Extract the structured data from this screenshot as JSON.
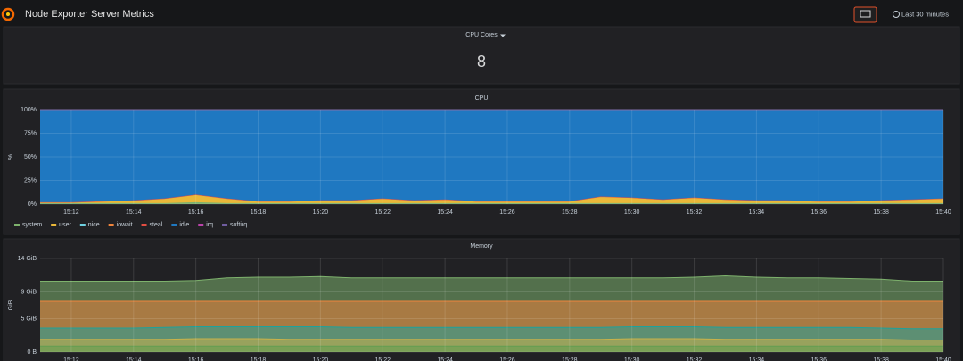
{
  "header": {
    "title": "Node Exporter Server Metrics",
    "time_range": "Last 30 minutes"
  },
  "stat": {
    "title": "CPU Cores",
    "value": 8
  },
  "chart_data": [
    {
      "type": "area",
      "stacked": true,
      "title": "CPU",
      "y_label": "%",
      "x": [
        "15:11",
        "15:12",
        "15:13",
        "15:14",
        "15:15",
        "15:16",
        "15:17",
        "15:18",
        "15:19",
        "15:20",
        "15:21",
        "15:22",
        "15:23",
        "15:24",
        "15:25",
        "15:26",
        "15:27",
        "15:28",
        "15:29",
        "15:30",
        "15:31",
        "15:32",
        "15:33",
        "15:34",
        "15:35",
        "15:36",
        "15:37",
        "15:38",
        "15:39",
        "15:40"
      ],
      "xticks": [
        "15:12",
        "15:14",
        "15:16",
        "15:18",
        "15:20",
        "15:22",
        "15:24",
        "15:26",
        "15:28",
        "15:30",
        "15:32",
        "15:34",
        "15:36",
        "15:38",
        "15:40"
      ],
      "ylim": [
        0,
        100
      ],
      "yticks": [
        {
          "value": 0,
          "label": "0%"
        },
        {
          "value": 25,
          "label": "25%"
        },
        {
          "value": 50,
          "label": "50%"
        },
        {
          "value": 75,
          "label": "75%"
        },
        {
          "value": 100,
          "label": "100%"
        }
      ],
      "grid": true,
      "series": [
        {
          "name": "system",
          "color": "#7eb26d",
          "values": [
            1,
            1,
            1,
            1,
            1,
            2,
            1,
            1,
            1,
            1,
            1,
            1,
            1,
            1,
            1,
            1,
            1,
            1,
            1,
            1,
            1,
            1,
            1,
            1,
            1,
            1,
            1,
            1,
            1,
            1
          ]
        },
        {
          "name": "user",
          "color": "#eab839",
          "values": [
            1,
            1,
            2,
            3,
            5,
            8,
            5,
            2,
            2,
            3,
            3,
            5,
            3,
            4,
            2,
            2,
            2,
            2,
            7,
            6,
            4,
            6,
            4,
            3,
            3,
            2,
            2,
            3,
            4,
            5
          ]
        },
        {
          "name": "nice",
          "color": "#6ed0e0",
          "values": [
            0,
            0,
            0,
            0,
            0,
            0,
            0,
            0,
            0,
            0,
            0,
            0,
            0,
            0,
            0,
            0,
            0,
            0,
            0,
            0,
            0,
            0,
            0,
            0,
            0,
            0,
            0,
            0,
            0,
            0
          ]
        },
        {
          "name": "iowait",
          "color": "#ef843c",
          "values": [
            0,
            0,
            0,
            0,
            0,
            0,
            0,
            0,
            0,
            0,
            0,
            0,
            0,
            0,
            0,
            0,
            0,
            0,
            0,
            0,
            0,
            0,
            0,
            0,
            0,
            0,
            0,
            0,
            0,
            0
          ]
        },
        {
          "name": "steal",
          "color": "#e24d42",
          "values": [
            0,
            0,
            0,
            0,
            0,
            0,
            0,
            0,
            0,
            0,
            0,
            0,
            0,
            0,
            0,
            0,
            0,
            0,
            0,
            0,
            0,
            0,
            0,
            0,
            0,
            0,
            0,
            0,
            0,
            0
          ]
        },
        {
          "name": "idle",
          "color": "#1f78c1",
          "values": [
            98,
            98,
            97,
            96,
            94,
            90,
            94,
            97,
            97,
            96,
            96,
            94,
            96,
            95,
            97,
            97,
            97,
            97,
            92,
            93,
            95,
            93,
            95,
            96,
            96,
            97,
            97,
            96,
            95,
            94
          ]
        },
        {
          "name": "irq",
          "color": "#ba43a9",
          "values": [
            0,
            0,
            0,
            0,
            0,
            0,
            0,
            0,
            0,
            0,
            0,
            0,
            0,
            0,
            0,
            0,
            0,
            0,
            0,
            0,
            0,
            0,
            0,
            0,
            0,
            0,
            0,
            0,
            0,
            0
          ]
        },
        {
          "name": "softirq",
          "color": "#705da0",
          "values": [
            0,
            0,
            0,
            0,
            0,
            0,
            0,
            0,
            0,
            0,
            0,
            0,
            0,
            0,
            0,
            0,
            0,
            0,
            0,
            0,
            0,
            0,
            0,
            0,
            0,
            0,
            0,
            0,
            0,
            0
          ]
        }
      ]
    },
    {
      "type": "area",
      "stacked": false,
      "title": "Memory",
      "y_label": "GiB",
      "x": [
        "15:11",
        "15:12",
        "15:13",
        "15:14",
        "15:15",
        "15:16",
        "15:17",
        "15:18",
        "15:19",
        "15:20",
        "15:21",
        "15:22",
        "15:23",
        "15:24",
        "15:25",
        "15:26",
        "15:27",
        "15:28",
        "15:29",
        "15:30",
        "15:31",
        "15:32",
        "15:33",
        "15:34",
        "15:35",
        "15:36",
        "15:37",
        "15:38",
        "15:39",
        "15:40"
      ],
      "xticks": [
        "15:12",
        "15:14",
        "15:16",
        "15:18",
        "15:20",
        "15:22",
        "15:24",
        "15:26",
        "15:28",
        "15:30",
        "15:32",
        "15:34",
        "15:36",
        "15:38",
        "15:40"
      ],
      "ylim": [
        0,
        14
      ],
      "yticks": [
        {
          "value": 0,
          "label": "0 B"
        },
        {
          "value": 5,
          "label": "5 GiB"
        },
        {
          "value": 9,
          "label": "9 GiB"
        },
        {
          "value": 14,
          "label": "14 GiB"
        }
      ],
      "grid": true,
      "series": [
        {
          "color": "#7eb26d",
          "values": [
            10.6,
            10.6,
            10.6,
            10.6,
            10.6,
            10.7,
            11.1,
            11.2,
            11.2,
            11.3,
            11.1,
            11.1,
            11.1,
            11.1,
            11.1,
            11.1,
            11.1,
            11.1,
            11.1,
            11.1,
            11.1,
            11.2,
            11.4,
            11.2,
            11.1,
            11.1,
            11.0,
            10.9,
            10.6,
            10.6
          ]
        },
        {
          "color": "#ef843c",
          "values": [
            7.6,
            7.6,
            7.6,
            7.6,
            7.6,
            7.6,
            7.6,
            7.6,
            7.6,
            7.6,
            7.6,
            7.6,
            7.6,
            7.6,
            7.6,
            7.6,
            7.6,
            7.6,
            7.6,
            7.6,
            7.6,
            7.6,
            7.6,
            7.6,
            7.6,
            7.6,
            7.6,
            7.6,
            7.6,
            7.6
          ]
        },
        {
          "color": "#1fa19a",
          "values": [
            3.6,
            3.6,
            3.6,
            3.6,
            3.7,
            3.8,
            3.8,
            3.8,
            3.8,
            3.8,
            3.7,
            3.7,
            3.7,
            3.7,
            3.7,
            3.7,
            3.7,
            3.7,
            3.7,
            3.8,
            3.8,
            3.8,
            3.7,
            3.7,
            3.7,
            3.7,
            3.7,
            3.6,
            3.5,
            3.5
          ]
        },
        {
          "color": "#c9b24a",
          "values": [
            1.9,
            1.9,
            1.9,
            1.9,
            1.9,
            2.0,
            2.0,
            2.0,
            1.9,
            1.9,
            1.9,
            1.9,
            1.9,
            1.9,
            1.9,
            1.9,
            1.9,
            1.9,
            1.9,
            2.0,
            2.0,
            2.0,
            1.9,
            1.9,
            1.9,
            1.9,
            1.9,
            1.9,
            1.8,
            1.8
          ]
        },
        {
          "color": "#629e51",
          "values": [
            0.9,
            0.9,
            0.9,
            0.9,
            0.9,
            0.9,
            0.9,
            0.9,
            0.9,
            0.9,
            0.9,
            0.9,
            0.9,
            0.9,
            0.9,
            0.9,
            0.9,
            0.9,
            0.9,
            0.9,
            0.9,
            0.9,
            0.9,
            0.9,
            0.9,
            0.9,
            0.9,
            0.9,
            0.9,
            0.9
          ]
        }
      ]
    }
  ]
}
